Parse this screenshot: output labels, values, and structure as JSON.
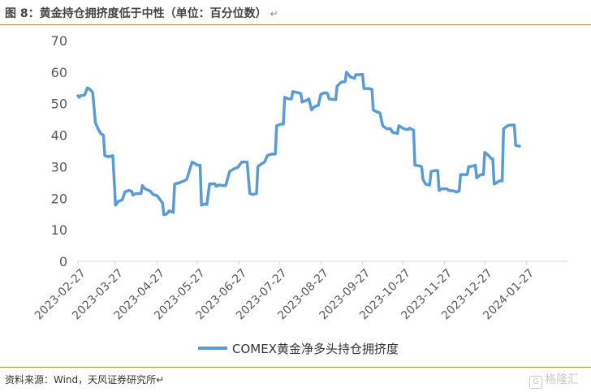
{
  "header": {
    "title": "图 8：黄金持仓拥挤度低于中性（单位：百分位数）",
    "return_mark": "↵"
  },
  "footer": {
    "source": "资料来源：Wind，天风证券研究所↵",
    "watermark": "格隆汇"
  },
  "colors": {
    "series": "#5b9bd5",
    "rule": "#c8874a",
    "axis": "#d9d9d9"
  },
  "chart_data": {
    "type": "line",
    "title": "",
    "xlabel": "",
    "ylabel": "",
    "ylim": [
      0,
      70
    ],
    "yticks": [
      0,
      10,
      20,
      30,
      40,
      50,
      60,
      70
    ],
    "grid": false,
    "legend": "bottom",
    "xlim": [
      "2023-02-27",
      "2024-02-26"
    ],
    "xticks": [
      "2023-02-27",
      "2023-03-27",
      "2023-04-27",
      "2023-05-27",
      "2023-06-27",
      "2023-07-27",
      "2023-08-27",
      "2023-09-27",
      "2023-10-27",
      "2023-11-27",
      "2023-12-27",
      "2024-01-27"
    ],
    "series": [
      {
        "name": "COMEX黄金净多头持仓拥挤度",
        "points": [
          [
            "2023-02-27",
            52.5
          ],
          [
            "2023-02-28",
            52
          ],
          [
            "2023-03-01",
            52.5
          ],
          [
            "2023-03-04",
            52.7
          ],
          [
            "2023-03-06",
            55
          ],
          [
            "2023-03-08",
            54.5
          ],
          [
            "2023-03-10",
            53.5
          ],
          [
            "2023-03-12",
            44
          ],
          [
            "2023-03-14",
            42
          ],
          [
            "2023-03-16",
            40.5
          ],
          [
            "2023-03-18",
            40
          ],
          [
            "2023-03-19",
            33.5
          ],
          [
            "2023-03-22",
            33.2
          ],
          [
            "2023-03-25",
            33.5
          ],
          [
            "2023-03-27",
            17.8
          ],
          [
            "2023-03-29",
            19
          ],
          [
            "2023-04-01",
            19.5
          ],
          [
            "2023-04-03",
            22
          ],
          [
            "2023-04-06",
            22.5
          ],
          [
            "2023-04-08",
            22.2
          ],
          [
            "2023-04-09",
            21
          ],
          [
            "2023-04-11",
            21.5
          ],
          [
            "2023-04-15",
            21.5
          ],
          [
            "2023-04-16",
            24
          ],
          [
            "2023-04-18",
            23
          ],
          [
            "2023-04-22",
            22.2
          ],
          [
            "2023-04-24",
            21.2
          ],
          [
            "2023-04-27",
            20.8
          ],
          [
            "2023-05-01",
            18.5
          ],
          [
            "2023-05-02",
            14.8
          ],
          [
            "2023-05-04",
            15
          ],
          [
            "2023-05-06",
            16
          ],
          [
            "2023-05-09",
            15.5
          ],
          [
            "2023-05-10",
            24.5
          ],
          [
            "2023-05-14",
            25
          ],
          [
            "2023-05-17",
            25.5
          ],
          [
            "2023-05-19",
            26
          ],
          [
            "2023-05-23",
            31.5
          ],
          [
            "2023-05-25",
            31
          ],
          [
            "2023-05-27",
            30.5
          ],
          [
            "2023-05-29",
            30.5
          ],
          [
            "2023-05-30",
            17.8
          ],
          [
            "2023-06-01",
            18.2
          ],
          [
            "2023-06-03",
            18
          ],
          [
            "2023-06-05",
            24.5
          ],
          [
            "2023-06-09",
            24.6
          ],
          [
            "2023-06-10",
            23.8
          ],
          [
            "2023-06-12",
            24.2
          ],
          [
            "2023-06-16",
            24
          ],
          [
            "2023-06-17",
            24
          ],
          [
            "2023-06-20",
            28.5
          ],
          [
            "2023-06-24",
            29.5
          ],
          [
            "2023-06-26",
            29.8
          ],
          [
            "2023-06-29",
            31.5
          ],
          [
            "2023-07-03",
            31.5
          ],
          [
            "2023-07-05",
            21.5
          ],
          [
            "2023-07-07",
            21.2
          ],
          [
            "2023-07-10",
            21.5
          ],
          [
            "2023-07-11",
            30
          ],
          [
            "2023-07-14",
            31
          ],
          [
            "2023-07-16",
            31.5
          ],
          [
            "2023-07-18",
            33.5
          ],
          [
            "2023-07-21",
            34
          ],
          [
            "2023-07-24",
            34
          ],
          [
            "2023-07-25",
            43
          ],
          [
            "2023-07-28",
            43.5
          ],
          [
            "2023-07-30",
            43.5
          ],
          [
            "2023-07-31",
            52
          ],
          [
            "2023-08-03",
            51.5
          ],
          [
            "2023-08-05",
            51.5
          ],
          [
            "2023-08-06",
            53.8
          ],
          [
            "2023-08-10",
            53.5
          ],
          [
            "2023-08-12",
            53.2
          ],
          [
            "2023-08-13",
            50.5
          ],
          [
            "2023-08-16",
            51
          ],
          [
            "2023-08-18",
            51.5
          ],
          [
            "2023-08-20",
            48
          ],
          [
            "2023-08-22",
            49
          ],
          [
            "2023-08-25",
            49.5
          ],
          [
            "2023-08-27",
            53
          ],
          [
            "2023-08-30",
            53.5
          ],
          [
            "2023-09-01",
            53.2
          ],
          [
            "2023-09-02",
            51.5
          ],
          [
            "2023-09-07",
            51.3
          ],
          [
            "2023-09-08",
            55.5
          ],
          [
            "2023-09-11",
            56.8
          ],
          [
            "2023-09-14",
            57
          ],
          [
            "2023-09-15",
            60
          ],
          [
            "2023-09-18",
            58.5
          ],
          [
            "2023-09-21",
            58
          ],
          [
            "2023-09-22",
            59.2
          ],
          [
            "2023-09-25",
            59.2
          ],
          [
            "2023-09-27",
            59.3
          ],
          [
            "2023-09-28",
            54.8
          ],
          [
            "2023-10-02",
            54.8
          ],
          [
            "2023-10-04",
            54.5
          ],
          [
            "2023-10-05",
            48
          ],
          [
            "2023-10-07",
            47.5
          ],
          [
            "2023-10-10",
            47
          ],
          [
            "2023-10-12",
            43
          ],
          [
            "2023-10-15",
            42
          ],
          [
            "2023-10-18",
            42
          ],
          [
            "2023-10-19",
            41
          ],
          [
            "2023-10-23",
            40.5
          ],
          [
            "2023-10-24",
            43
          ],
          [
            "2023-10-26",
            42.5
          ],
          [
            "2023-10-28",
            42
          ],
          [
            "2023-10-31",
            41.8
          ],
          [
            "2023-11-01",
            42.2
          ],
          [
            "2023-11-03",
            41.8
          ],
          [
            "2023-11-04",
            41.5
          ],
          [
            "2023-11-05",
            30.5
          ],
          [
            "2023-11-08",
            30.3
          ],
          [
            "2023-11-10",
            30
          ],
          [
            "2023-11-11",
            26
          ],
          [
            "2023-11-13",
            24.5
          ],
          [
            "2023-11-16",
            24.2
          ],
          [
            "2023-11-17",
            28.5
          ],
          [
            "2023-11-20",
            28.8
          ],
          [
            "2023-11-22",
            28.8
          ],
          [
            "2023-11-23",
            22.5
          ],
          [
            "2023-11-25",
            23
          ],
          [
            "2023-11-29",
            23
          ],
          [
            "2023-11-30",
            22.5
          ],
          [
            "2023-12-04",
            22.3
          ],
          [
            "2023-12-06",
            22
          ],
          [
            "2023-12-08",
            22.3
          ],
          [
            "2023-12-09",
            27.5
          ],
          [
            "2023-12-12",
            27.5
          ],
          [
            "2023-12-14",
            27.5
          ],
          [
            "2023-12-15",
            30
          ],
          [
            "2023-12-18",
            30.2
          ],
          [
            "2023-12-20",
            30.5
          ],
          [
            "2023-12-21",
            26.5
          ],
          [
            "2023-12-24",
            27.5
          ],
          [
            "2023-12-26",
            27.5
          ],
          [
            "2023-12-27",
            34.5
          ],
          [
            "2023-12-30",
            33.5
          ],
          [
            "2024-01-01",
            32.5
          ],
          [
            "2024-01-02",
            32.5
          ],
          [
            "2024-01-03",
            24.5
          ],
          [
            "2024-01-05",
            25
          ],
          [
            "2024-01-07",
            25.5
          ],
          [
            "2024-01-09",
            25.5
          ],
          [
            "2024-01-10",
            42
          ],
          [
            "2024-01-13",
            43
          ],
          [
            "2024-01-15",
            43.2
          ],
          [
            "2024-01-18",
            43.2
          ],
          [
            "2024-01-19",
            36.8
          ],
          [
            "2024-01-22",
            36.5
          ]
        ]
      }
    ]
  }
}
